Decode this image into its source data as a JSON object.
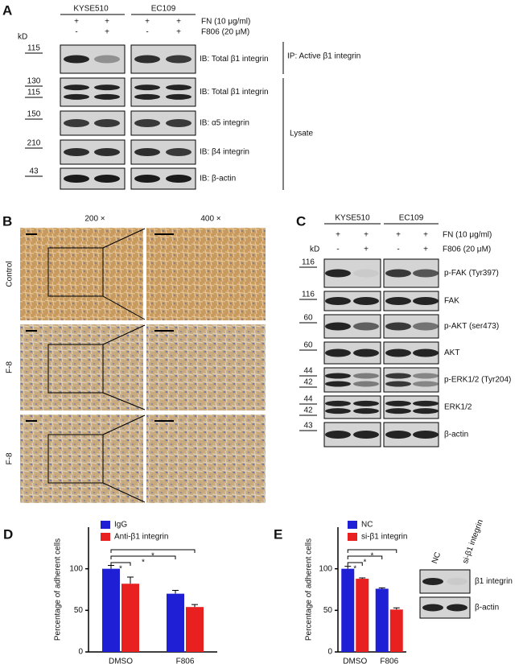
{
  "panel_labels": [
    "A",
    "B",
    "C",
    "D",
    "E"
  ],
  "panel_a": {
    "cell_lines": [
      "KYSE510",
      "EC109"
    ],
    "treatments": [
      {
        "label": "FN (10 μg/ml)",
        "signs": [
          "+",
          "+",
          "+",
          "+"
        ]
      },
      {
        "label": "F806 (20 μM)",
        "signs": [
          "-",
          "+",
          "-",
          "+"
        ]
      }
    ],
    "kd": "kD",
    "blots": [
      {
        "markers": [
          115
        ],
        "label": "IB: Total β1 integrin"
      },
      {
        "markers": [
          130,
          115
        ],
        "label": "IB: Total β1 integrin"
      },
      {
        "markers": [
          150
        ],
        "label": "IB:  α5 integrin"
      },
      {
        "markers": [
          210
        ],
        "label": "IB: β4 integrin"
      },
      {
        "markers": [
          43
        ],
        "label": "IB: β-actin"
      }
    ],
    "groups": [
      "IP: Active β1 integrin",
      "Lysate"
    ]
  },
  "panel_b": {
    "magnifications": [
      "200 ×",
      "400 ×"
    ],
    "rows": [
      "Control",
      "F-8",
      "F-8"
    ]
  },
  "panel_c": {
    "cell_lines": [
      "KYSE510",
      "EC109"
    ],
    "treatments": [
      {
        "label": "FN (10 μg/ml)",
        "signs": [
          "+",
          "+",
          "+",
          "+"
        ]
      },
      {
        "label": "F806 (20 μM)",
        "signs": [
          "-",
          "+",
          "-",
          "+"
        ]
      }
    ],
    "kd": "kD",
    "blots": [
      {
        "markers": [
          116
        ],
        "label": "p-FAK (Tyr397)"
      },
      {
        "markers": [
          116
        ],
        "label": "FAK"
      },
      {
        "markers": [
          60
        ],
        "label": "p-AKT (ser473)"
      },
      {
        "markers": [
          60
        ],
        "label": "AKT"
      },
      {
        "markers": [
          44,
          42
        ],
        "label": "p-ERK1/2 (Tyr204)"
      },
      {
        "markers": [
          44,
          42
        ],
        "label": "ERK1/2"
      },
      {
        "markers": [
          43
        ],
        "label": "β-actin"
      }
    ]
  },
  "chart_data": [
    {
      "type": "bar",
      "y_label": "Percentage of adherent cells",
      "categories": [
        "DMSO",
        "F806"
      ],
      "series": [
        {
          "name": "IgG",
          "color": "#1f1fd6",
          "values": [
            100,
            70
          ],
          "errors": [
            4,
            4
          ]
        },
        {
          "name": "Anti-β1 integrin",
          "color": "#e8201f",
          "values": [
            82,
            54
          ],
          "errors": [
            8,
            3
          ]
        }
      ],
      "ylim": [
        0,
        150
      ],
      "yticks": [
        0,
        50,
        100
      ],
      "annotations": [
        "*",
        "*",
        "*"
      ]
    },
    {
      "type": "bar",
      "y_label": "Percentage of adherent cells",
      "categories": [
        "DMSO",
        "F806"
      ],
      "series": [
        {
          "name": "NC",
          "color": "#1f1fd6",
          "values": [
            100,
            76
          ],
          "errors": [
            3,
            1
          ]
        },
        {
          "name": "si-β1 integrin",
          "color": "#e8201f",
          "values": [
            88,
            51
          ],
          "errors": [
            1,
            2
          ]
        }
      ],
      "ylim": [
        0,
        150
      ],
      "yticks": [
        0,
        50,
        100
      ],
      "annotations": [
        "*",
        "*",
        "*"
      ]
    }
  ],
  "panel_e_blot": {
    "lanes": [
      "NC",
      "si-β1 integrin"
    ],
    "rows": [
      "β1 integrin",
      "β-actin"
    ]
  }
}
